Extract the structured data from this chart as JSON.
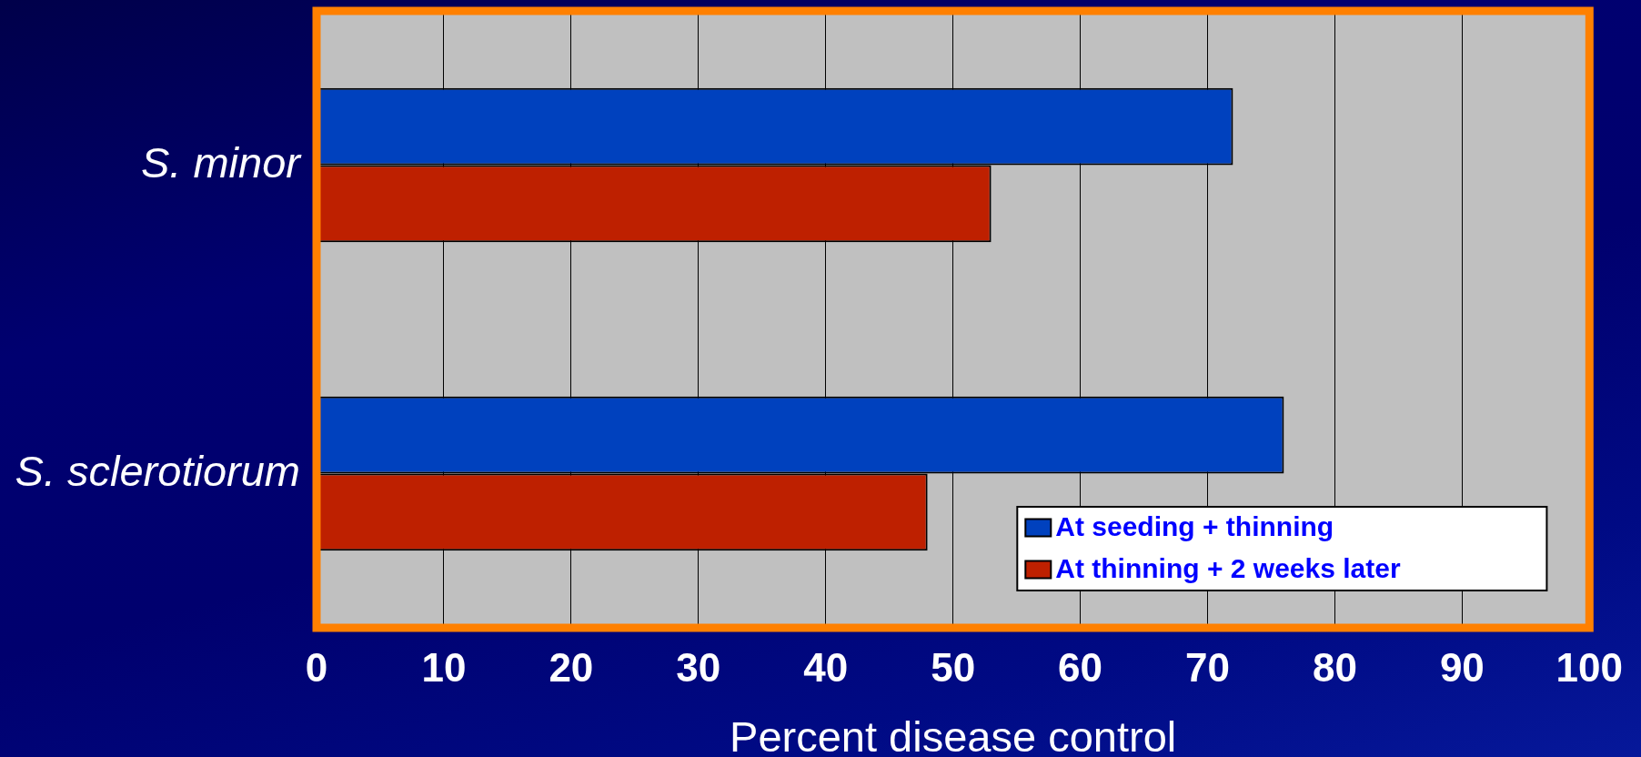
{
  "chart_data": {
    "type": "bar",
    "orientation": "horizontal",
    "categories": [
      "S. minor",
      "S. sclerotiorum"
    ],
    "series": [
      {
        "name": "At seeding + thinning",
        "color": "#0041be",
        "values": [
          72,
          76
        ]
      },
      {
        "name": "At thinning + 2 weeks later",
        "color": "#be2000",
        "values": [
          53,
          48
        ]
      }
    ],
    "xlim": [
      0,
      100
    ],
    "xticks": [
      0,
      10,
      20,
      30,
      40,
      50,
      60,
      70,
      80,
      90,
      100
    ],
    "xlabel": "Percent disease control",
    "grid": "x",
    "legend": "bottom right"
  }
}
